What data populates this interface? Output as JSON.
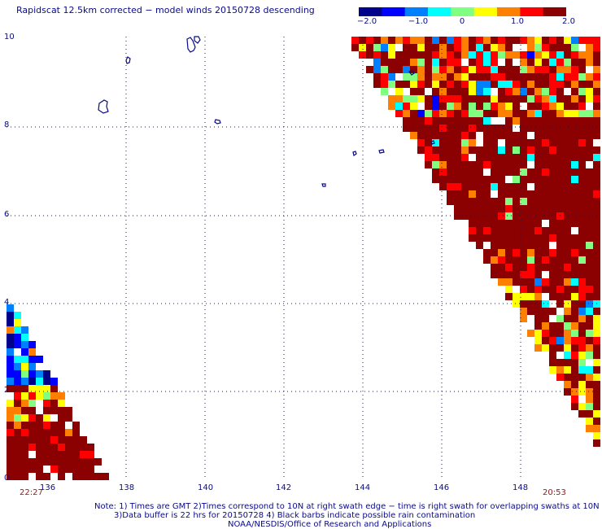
{
  "title": "Rapidscat 12.5km corrected − model winds 20150728 descending",
  "colorbar": {
    "tick_labels": [
      "−2.0",
      "−1.0",
      "0",
      "1.0",
      "2.0"
    ],
    "tick_values": [
      -2.0,
      -1.0,
      0,
      1.0,
      2.0
    ],
    "colors": [
      "#00008b",
      "#0000ff",
      "#0080ff",
      "#00ffff",
      "#80ff80",
      "#ffff00",
      "#ff8000",
      "#ff0000",
      "#8b0000"
    ]
  },
  "axes": {
    "x_labels": [
      "136",
      "138",
      "140",
      "142",
      "144",
      "146",
      "148"
    ],
    "y_labels": [
      "10",
      "8",
      "6",
      "4",
      "2",
      "0"
    ]
  },
  "times": {
    "left": "22:27",
    "right": "20:53"
  },
  "notes": {
    "line1": "Note: 1) Times are GMT 2)Times correspond to 10N at right swath edge − time is right swath for overlapping swaths at 10N",
    "line2": "3)Data buffer is 22 hrs for 20150728 4) Black barbs indicate possible rain contamination",
    "line3": "NOAA/NESDIS/Office of Research and Applications"
  }
}
